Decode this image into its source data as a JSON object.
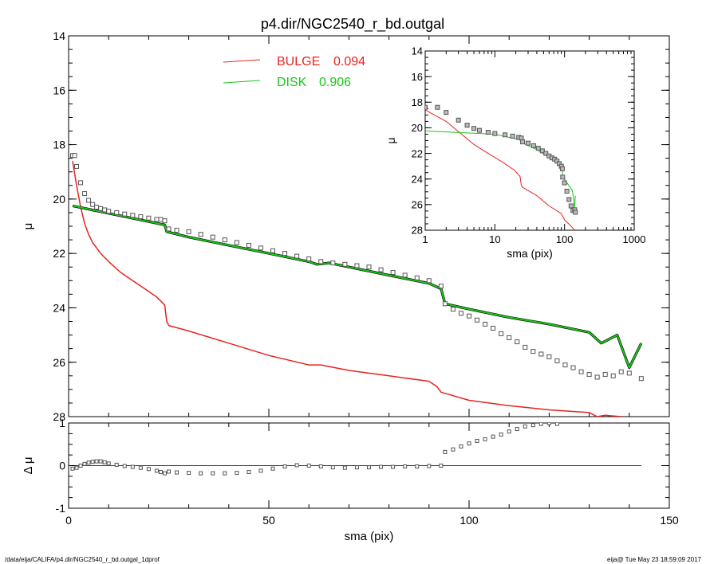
{
  "title": "p4.dir/NGC2540_r_bd.outgal",
  "footer_left": "/data/eija/CALIFA/p4.dir/NGC2540_r_bd.outgal_1dprof",
  "footer_right": "eija@  Tue May 23 18:59:09 2017",
  "colors": {
    "bulge": "#e8231f",
    "disk": "#19c519",
    "data": "#555555",
    "axes": "#000000"
  },
  "chart_data": [
    {
      "id": "main",
      "type": "line",
      "xlabel": "sma (pix)",
      "ylabel": "μ",
      "xlim": [
        0,
        150
      ],
      "ylim": [
        28,
        14
      ],
      "x_ticks": [
        0,
        50,
        100,
        150
      ],
      "y_ticks": [
        14,
        16,
        18,
        20,
        22,
        24,
        26,
        28
      ],
      "legend": [
        {
          "label": "BULGE",
          "value": "0.094",
          "color": "#e8231f"
        },
        {
          "label": "DISK",
          "value": "0.906",
          "color": "#19c519"
        }
      ],
      "legend_position": "top-center",
      "series": [
        {
          "role": "bulge",
          "x": [
            1,
            2,
            3,
            4,
            5,
            6,
            8,
            10,
            13,
            16,
            19,
            22,
            24,
            24.5,
            25,
            30,
            40,
            50,
            60,
            63,
            70,
            80,
            90,
            92,
            93,
            100,
            110,
            120,
            130,
            132,
            134,
            138
          ],
          "y": [
            18.6,
            19.5,
            20.3,
            20.9,
            21.3,
            21.6,
            22.0,
            22.3,
            22.7,
            23.0,
            23.3,
            23.6,
            23.9,
            24.5,
            24.65,
            24.85,
            25.3,
            25.75,
            26.1,
            26.1,
            26.3,
            26.5,
            26.7,
            26.9,
            27.1,
            27.4,
            27.6,
            27.75,
            27.85,
            28.0,
            27.95,
            28.0
          ]
        },
        {
          "role": "disk",
          "x": [
            1,
            24,
            24.5,
            30,
            40,
            50,
            60,
            62,
            65,
            70,
            80,
            90,
            93,
            94,
            100,
            110,
            120,
            130,
            133,
            135,
            137,
            140,
            143
          ],
          "y": [
            20.25,
            20.95,
            21.2,
            21.4,
            21.7,
            22.0,
            22.3,
            22.4,
            22.35,
            22.5,
            22.8,
            23.1,
            23.3,
            23.85,
            24.05,
            24.35,
            24.6,
            24.9,
            25.3,
            25.15,
            25.0,
            26.2,
            25.3
          ]
        },
        {
          "role": "data",
          "x": [
            1,
            1.5,
            2,
            3,
            4,
            5,
            6,
            7,
            8,
            9,
            10,
            12,
            14,
            16,
            18,
            20,
            22,
            23,
            24,
            25,
            27,
            30,
            33,
            36,
            39,
            42,
            45,
            48,
            51,
            54,
            57,
            60,
            63,
            66,
            69,
            72,
            75,
            78,
            81,
            84,
            87,
            90,
            93,
            94,
            96,
            98,
            100,
            102,
            104,
            106,
            108,
            110,
            112,
            114,
            116,
            118,
            120,
            122,
            124,
            126,
            128,
            130,
            132,
            134,
            136,
            138,
            140,
            143
          ],
          "y": [
            18.4,
            18.4,
            18.8,
            19.4,
            19.8,
            20.05,
            20.2,
            20.3,
            20.35,
            20.4,
            20.45,
            20.5,
            20.55,
            20.6,
            20.65,
            20.7,
            20.75,
            20.75,
            20.8,
            21.1,
            21.15,
            21.2,
            21.3,
            21.4,
            21.5,
            21.6,
            21.7,
            21.8,
            21.9,
            22.0,
            22.1,
            22.2,
            22.3,
            22.35,
            22.4,
            22.45,
            22.5,
            22.6,
            22.7,
            22.8,
            22.9,
            23.0,
            23.2,
            23.85,
            24.05,
            24.2,
            24.3,
            24.45,
            24.6,
            24.75,
            24.95,
            25.1,
            25.25,
            25.45,
            25.6,
            25.7,
            25.8,
            25.95,
            26.1,
            26.2,
            26.35,
            26.45,
            26.55,
            26.45,
            26.5,
            26.35,
            26.4,
            26.6
          ]
        }
      ]
    },
    {
      "id": "residual",
      "type": "scatter",
      "xlabel": "sma (pix)",
      "ylabel": "Δ μ",
      "xlim": [
        0,
        150
      ],
      "ylim": [
        -1,
        1
      ],
      "x_ticks": [
        0,
        50,
        100,
        150
      ],
      "y_ticks": [
        -1,
        0,
        1
      ],
      "series": [
        {
          "role": "data",
          "x": [
            1,
            2,
            3,
            4,
            5,
            6,
            7,
            8,
            9,
            10,
            12,
            14,
            16,
            18,
            20,
            22,
            23,
            24,
            25,
            27,
            30,
            33,
            36,
            39,
            42,
            45,
            48,
            51,
            54,
            57,
            60,
            63,
            66,
            69,
            72,
            75,
            78,
            81,
            84,
            87,
            90,
            93,
            94,
            96,
            98,
            100,
            102,
            104,
            106,
            108,
            110,
            112,
            114,
            116,
            118,
            120,
            122
          ],
          "y": [
            -0.07,
            -0.05,
            0.0,
            0.04,
            0.07,
            0.09,
            0.1,
            0.1,
            0.08,
            0.05,
            0.02,
            -0.01,
            -0.03,
            -0.05,
            -0.08,
            -0.12,
            -0.15,
            -0.18,
            -0.14,
            -0.16,
            -0.17,
            -0.18,
            -0.18,
            -0.18,
            -0.17,
            -0.15,
            -0.12,
            -0.07,
            -0.02,
            0.01,
            0.0,
            -0.02,
            -0.04,
            -0.05,
            -0.04,
            -0.04,
            -0.03,
            -0.03,
            -0.02,
            -0.02,
            -0.01,
            0.0,
            0.32,
            0.38,
            0.45,
            0.52,
            0.58,
            0.62,
            0.68,
            0.73,
            0.8,
            0.86,
            0.92,
            0.95,
            0.98,
            1.0,
            0.98
          ]
        }
      ]
    },
    {
      "id": "inset",
      "type": "line",
      "xlabel": "sma (pix)",
      "ylabel": "μ",
      "xscale": "log",
      "xlim": [
        1,
        1000
      ],
      "ylim": [
        28,
        14
      ],
      "x_ticks": [
        1,
        10,
        100,
        1000
      ],
      "y_ticks": [
        14,
        16,
        18,
        20,
        22,
        24,
        26,
        28
      ],
      "series": [
        {
          "role": "bulge",
          "x": [
            1,
            2,
            3,
            5,
            8,
            13,
            19,
            23,
            24,
            25,
            40,
            60,
            90,
            100,
            120,
            140
          ],
          "y": [
            18.6,
            19.5,
            20.3,
            21.3,
            22.0,
            22.7,
            23.3,
            23.8,
            24.5,
            24.65,
            25.3,
            26.1,
            26.7,
            27.2,
            27.6,
            28.0
          ]
        },
        {
          "role": "disk",
          "x": [
            1,
            10,
            24,
            25,
            40,
            60,
            70,
            90,
            93,
            94,
            110,
            130,
            140,
            143
          ],
          "y": [
            20.25,
            20.5,
            20.95,
            21.2,
            21.7,
            22.3,
            22.5,
            23.1,
            23.3,
            23.85,
            24.35,
            24.9,
            26.2,
            25.3
          ]
        },
        {
          "role": "data",
          "x": [
            1,
            1.5,
            2,
            3,
            4,
            5,
            6,
            8,
            10,
            14,
            18,
            22,
            24,
            25,
            30,
            36,
            42,
            48,
            54,
            60,
            66,
            72,
            78,
            84,
            90,
            93,
            94,
            100,
            108,
            116,
            124,
            132,
            140,
            143
          ],
          "y": [
            18.4,
            18.4,
            18.8,
            19.4,
            19.8,
            20.05,
            20.2,
            20.35,
            20.45,
            20.55,
            20.65,
            20.75,
            20.8,
            21.1,
            21.2,
            21.4,
            21.6,
            21.8,
            22.0,
            22.2,
            22.35,
            22.45,
            22.6,
            22.8,
            23.0,
            23.2,
            23.85,
            24.3,
            24.95,
            25.6,
            26.1,
            26.45,
            26.4,
            26.6
          ]
        }
      ]
    }
  ]
}
